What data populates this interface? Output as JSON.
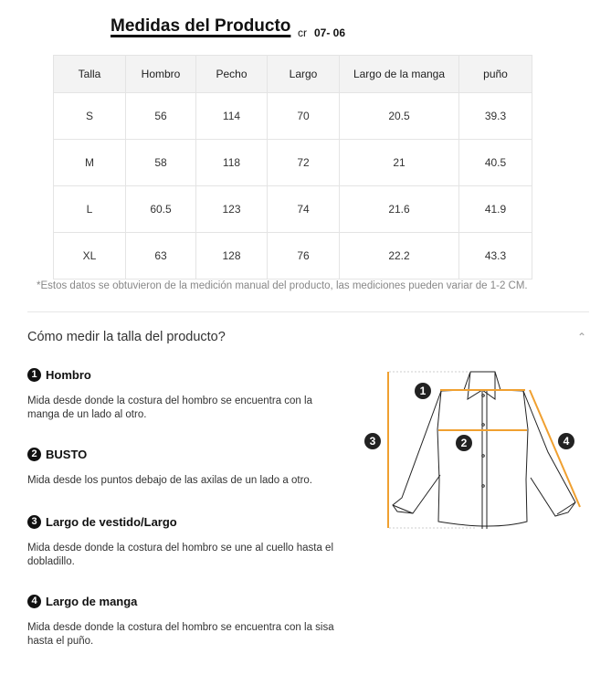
{
  "title": "Medidas del Producto",
  "code_prefix": "cr",
  "code": "07- 06",
  "table": {
    "headers": [
      "Talla",
      "Hombro",
      "Pecho",
      "Largo",
      "Largo de la manga",
      "puño"
    ],
    "rows": [
      [
        "S",
        "56",
        "114",
        "70",
        "20.5",
        "39.3"
      ],
      [
        "M",
        "58",
        "118",
        "72",
        "21",
        "40.5"
      ],
      [
        "L",
        "60.5",
        "123",
        "74",
        "21.6",
        "41.9"
      ],
      [
        "XL",
        "63",
        "128",
        "76",
        "22.2",
        "43.3"
      ]
    ]
  },
  "note": "*Estos datos se obtuvieron de la medición manual del producto, las mediciones pueden variar de 1-2 CM.",
  "howto_title": "Cómo medir la talla del producto?",
  "sections": [
    {
      "num": "1",
      "title": "Hombro",
      "text": "Mida desde donde la costura del hombro se encuentra con la manga de un lado al otro."
    },
    {
      "num": "2",
      "title": "BUSTO",
      "text": "Mida desde los puntos debajo de las axilas de un lado a otro."
    },
    {
      "num": "3",
      "title": "Largo de vestido/Largo",
      "text": "Mida desde donde la costura del hombro se une al cuello hasta el dobladillo."
    },
    {
      "num": "4",
      "title": "Largo de manga",
      "text": "Mida desde donde la costura del hombro se encuentra con la sisa hasta el puño."
    }
  ],
  "diagram_labels": [
    "1",
    "2",
    "3",
    "4"
  ],
  "colors": {
    "measure_line": "#f0a030"
  }
}
